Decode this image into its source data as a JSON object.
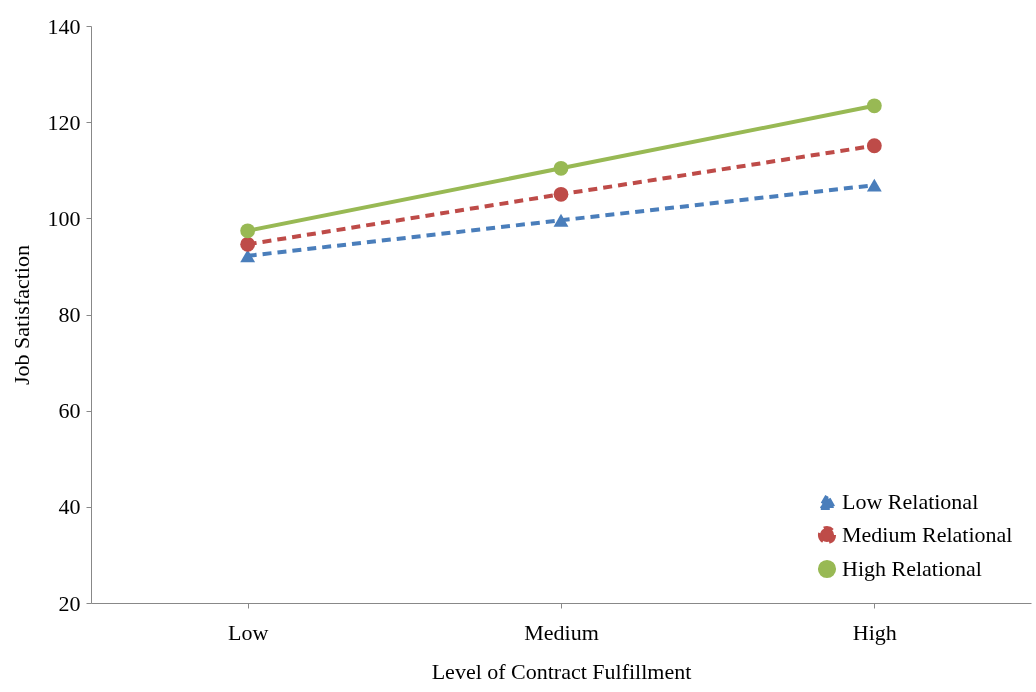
{
  "chart_data": {
    "type": "line",
    "xlabel": "Level of Contract Fulfillment",
    "ylabel": "Job Satisfaction",
    "categories": [
      "Low",
      "Medium",
      "High"
    ],
    "series": [
      {
        "name": "Low Relational",
        "color": "#4a7ebb",
        "values": [
          92.2,
          99.6,
          106.9
        ],
        "marker": "triangle",
        "line_style": "dashed"
      },
      {
        "name": "Medium Relational",
        "color": "#be4b48",
        "values": [
          94.6,
          105.0,
          115.1
        ],
        "marker": "circle",
        "line_style": "dashed"
      },
      {
        "name": "High Relational",
        "color": "#98b954",
        "values": [
          97.4,
          110.4,
          123.4
        ],
        "marker": "circle",
        "line_style": "solid"
      }
    ],
    "ylim": [
      20,
      140
    ],
    "yticks": [
      20,
      40,
      60,
      80,
      100,
      120,
      140
    ],
    "grid": false,
    "legend": "bottom right"
  }
}
